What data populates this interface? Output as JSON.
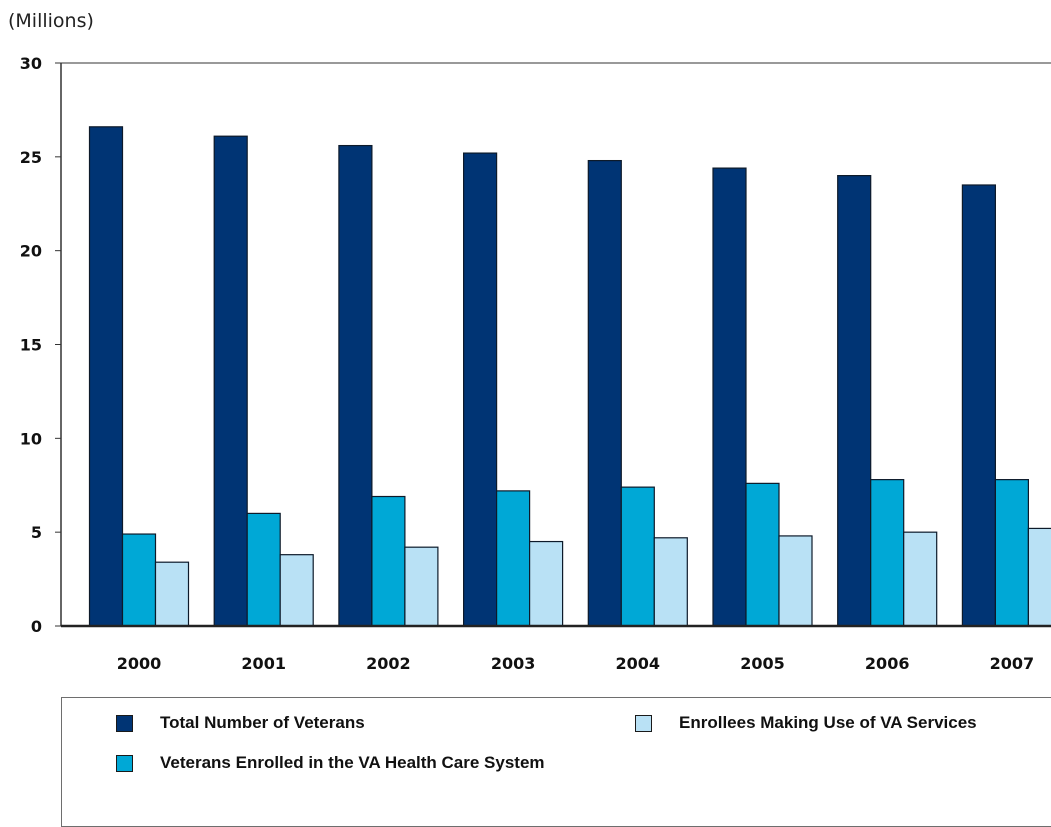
{
  "chart_data": {
    "type": "bar",
    "unit_label": "(Millions)",
    "categories": [
      "2000",
      "2001",
      "2002",
      "2003",
      "2004",
      "2005",
      "2006",
      "2007"
    ],
    "series": [
      {
        "name": "Total Number of Veterans",
        "color": "#003474",
        "values": [
          26.6,
          26.1,
          25.6,
          25.2,
          24.8,
          24.4,
          24.0,
          23.5
        ]
      },
      {
        "name": "Veterans Enrolled in the VA Health Care System",
        "color": "#00a8d6",
        "values": [
          4.9,
          6.0,
          6.9,
          7.2,
          7.4,
          7.6,
          7.8,
          7.8
        ]
      },
      {
        "name": "Enrollees Making Use of VA Services",
        "color": "#b9e1f5",
        "values": [
          3.4,
          3.8,
          4.2,
          4.5,
          4.7,
          4.8,
          5.0,
          5.2
        ]
      }
    ],
    "yticks": [
      "0",
      "5",
      "10",
      "15",
      "20",
      "25",
      "30"
    ],
    "ylim": [
      0,
      30
    ],
    "grid": false,
    "legend_position": "bottom"
  }
}
